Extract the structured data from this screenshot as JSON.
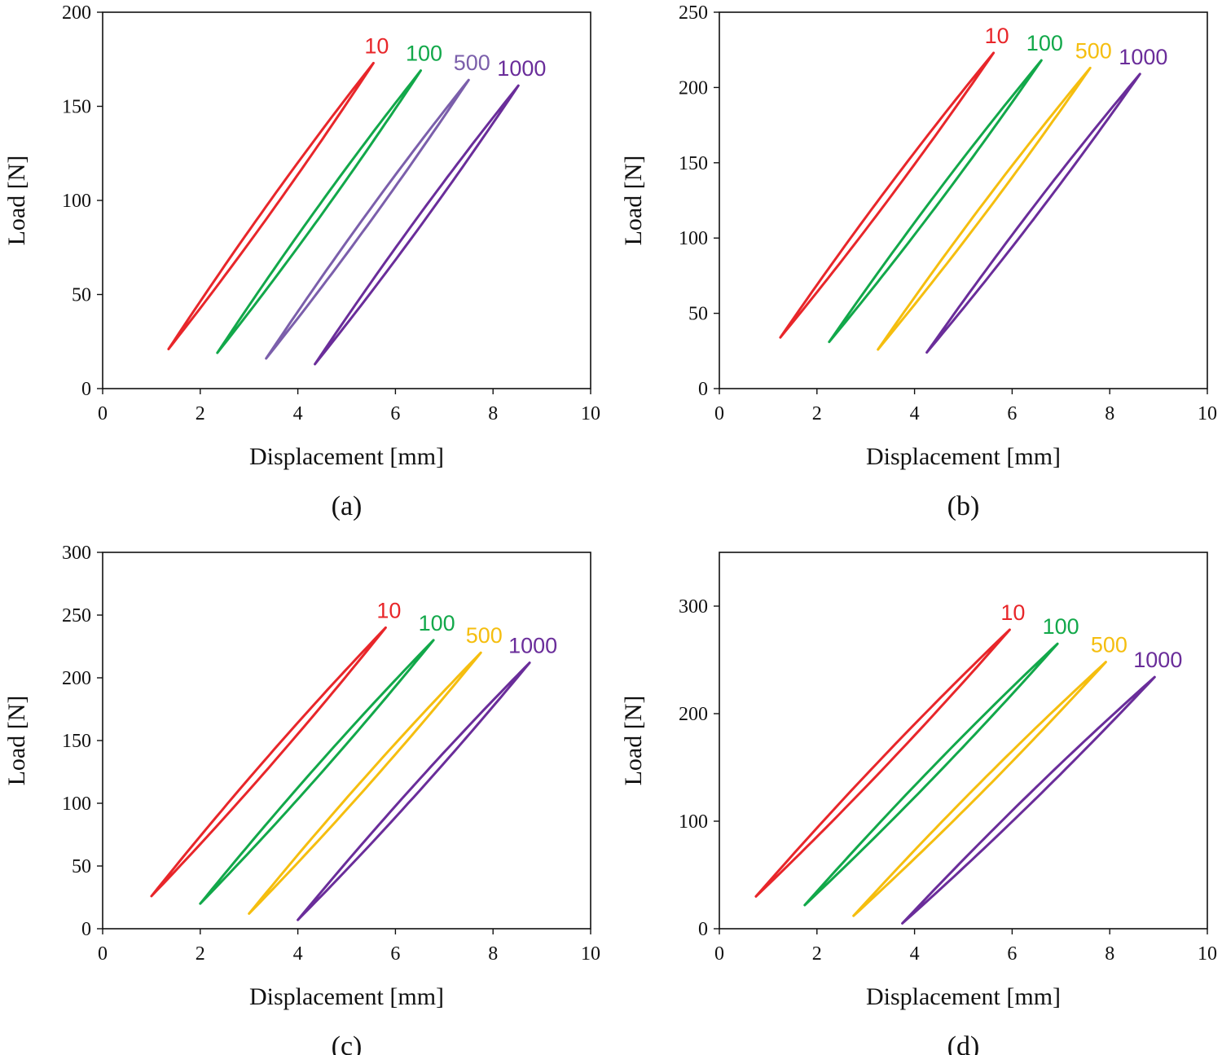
{
  "chart_data": [
    {
      "type": "line",
      "panel_label": "(a)",
      "xlabel": "Displacement [mm]",
      "ylabel": "Load [N]",
      "xlim": [
        0,
        10
      ],
      "ylim": [
        0,
        200
      ],
      "xticks": [
        "0",
        "2",
        "4",
        "6",
        "8",
        "10"
      ],
      "yticks": [
        "0",
        "50",
        "100",
        "150",
        "200"
      ],
      "grid": false,
      "series": [
        {
          "name": "10",
          "color": "#e8262a",
          "x_min": 1.35,
          "y_min": 21,
          "x_max": 5.55,
          "y_max": 173
        },
        {
          "name": "100",
          "color": "#12a84a",
          "x_min": 2.35,
          "y_min": 19,
          "x_max": 6.52,
          "y_max": 169
        },
        {
          "name": "500",
          "color": "#7b5fab",
          "x_min": 3.35,
          "y_min": 16,
          "x_max": 7.5,
          "y_max": 164
        },
        {
          "name": "1000",
          "color": "#6a2d9a",
          "x_min": 4.35,
          "y_min": 13,
          "x_max": 8.52,
          "y_max": 161
        }
      ]
    },
    {
      "type": "line",
      "panel_label": "(b)",
      "xlabel": "Displacement [mm]",
      "ylabel": "Load [N]",
      "xlim": [
        0,
        10
      ],
      "ylim": [
        0,
        250
      ],
      "xticks": [
        "0",
        "2",
        "4",
        "6",
        "8",
        "10"
      ],
      "yticks": [
        "0",
        "50",
        "100",
        "150",
        "200",
        "250"
      ],
      "grid": false,
      "series": [
        {
          "name": "10",
          "color": "#e8262a",
          "x_min": 1.25,
          "y_min": 34,
          "x_max": 5.62,
          "y_max": 223
        },
        {
          "name": "100",
          "color": "#12a84a",
          "x_min": 2.25,
          "y_min": 31,
          "x_max": 6.6,
          "y_max": 218
        },
        {
          "name": "500",
          "color": "#f5be0f",
          "x_min": 3.25,
          "y_min": 26,
          "x_max": 7.6,
          "y_max": 213
        },
        {
          "name": "1000",
          "color": "#6a2d9a",
          "x_min": 4.25,
          "y_min": 24,
          "x_max": 8.62,
          "y_max": 209
        }
      ]
    },
    {
      "type": "line",
      "panel_label": "(c)",
      "xlabel": "Displacement [mm]",
      "ylabel": "Load [N]",
      "xlim": [
        0,
        10
      ],
      "ylim": [
        0,
        300
      ],
      "xticks": [
        "0",
        "2",
        "4",
        "6",
        "8",
        "10"
      ],
      "yticks": [
        "0",
        "50",
        "100",
        "150",
        "200",
        "250",
        "300"
      ],
      "grid": false,
      "series": [
        {
          "name": "10",
          "color": "#e8262a",
          "x_min": 1.0,
          "y_min": 26,
          "x_max": 5.8,
          "y_max": 240
        },
        {
          "name": "100",
          "color": "#12a84a",
          "x_min": 2.0,
          "y_min": 20,
          "x_max": 6.78,
          "y_max": 230
        },
        {
          "name": "500",
          "color": "#f5be0f",
          "x_min": 3.0,
          "y_min": 12,
          "x_max": 7.75,
          "y_max": 220
        },
        {
          "name": "1000",
          "color": "#6a2d9a",
          "x_min": 4.0,
          "y_min": 7,
          "x_max": 8.75,
          "y_max": 212
        }
      ]
    },
    {
      "type": "line",
      "panel_label": "(d)",
      "xlabel": "Displacement [mm]",
      "ylabel": "Load [N]",
      "xlim": [
        0,
        10
      ],
      "ylim": [
        0,
        350
      ],
      "xticks": [
        "0",
        "2",
        "4",
        "6",
        "8",
        "10"
      ],
      "yticks": [
        "0",
        "100",
        "200",
        "300"
      ],
      "grid": false,
      "series": [
        {
          "name": "10",
          "color": "#e8262a",
          "x_min": 0.75,
          "y_min": 30,
          "x_max": 5.95,
          "y_max": 278
        },
        {
          "name": "100",
          "color": "#12a84a",
          "x_min": 1.75,
          "y_min": 22,
          "x_max": 6.93,
          "y_max": 265
        },
        {
          "name": "500",
          "color": "#f5be0f",
          "x_min": 2.75,
          "y_min": 12,
          "x_max": 7.92,
          "y_max": 248
        },
        {
          "name": "1000",
          "color": "#6a2d9a",
          "x_min": 3.75,
          "y_min": 5,
          "x_max": 8.92,
          "y_max": 234
        }
      ]
    }
  ]
}
